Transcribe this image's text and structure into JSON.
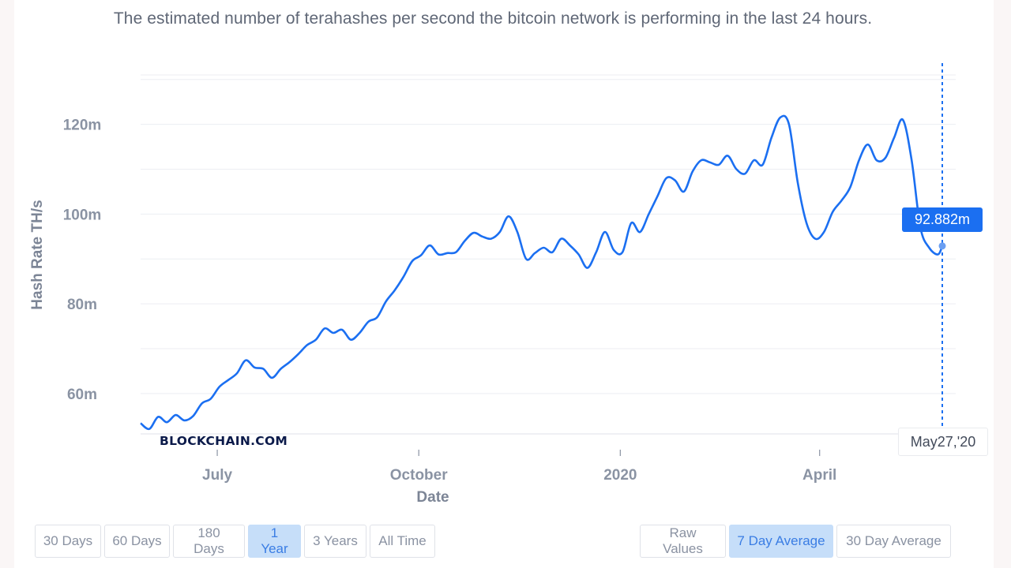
{
  "subtitle": "The estimated number of terahashes per second the bitcoin network is performing in the last 24 hours.",
  "watermark": "BLOCKCHAIN.COM",
  "tooltip": {
    "value": "92.882m",
    "date": "May27,'20"
  },
  "range_buttons": [
    {
      "label": "30 Days",
      "active": false
    },
    {
      "label": "60 Days",
      "active": false
    },
    {
      "label": "180 Days",
      "active": false
    },
    {
      "label": "1 Year",
      "active": true
    },
    {
      "label": "3 Years",
      "active": false
    },
    {
      "label": "All Time",
      "active": false
    }
  ],
  "avg_buttons": [
    {
      "label": "Raw Values",
      "active": false
    },
    {
      "label": "7 Day Average",
      "active": true
    },
    {
      "label": "30 Day Average",
      "active": false
    }
  ],
  "colors": {
    "line": "#1b6ff1",
    "accent": "#1b6ff1",
    "active_button": "#c6def9"
  },
  "chart_data": {
    "type": "line",
    "title": "",
    "xlabel": "Date",
    "ylabel": "Hash Rate TH/s",
    "x_range": [
      "2019-05-27",
      "2020-05-27"
    ],
    "ylim": [
      51,
      131
    ],
    "y_ticks": [
      60,
      80,
      100,
      120
    ],
    "y_tick_labels": [
      "60m",
      "80m",
      "100m",
      "120m"
    ],
    "x_ticks": [
      {
        "date": "2019-07-01",
        "label": "July"
      },
      {
        "date": "2019-10-01",
        "label": "October"
      },
      {
        "date": "2020-01-01",
        "label": "2020"
      },
      {
        "date": "2020-04-01",
        "label": "April"
      }
    ],
    "grid": true,
    "series": [
      {
        "values": [
          [
            "2019-05-27",
            53.4
          ],
          [
            "2019-05-31",
            52.1
          ],
          [
            "2019-06-04",
            54.8
          ],
          [
            "2019-06-08",
            53.6
          ],
          [
            "2019-06-12",
            55.2
          ],
          [
            "2019-06-16",
            54.0
          ],
          [
            "2019-06-20",
            55.0
          ],
          [
            "2019-06-24",
            57.8
          ],
          [
            "2019-06-28",
            58.8
          ],
          [
            "2019-07-02",
            61.5
          ],
          [
            "2019-07-06",
            63.0
          ],
          [
            "2019-07-10",
            64.5
          ],
          [
            "2019-07-14",
            67.4
          ],
          [
            "2019-07-18",
            65.8
          ],
          [
            "2019-07-22",
            65.5
          ],
          [
            "2019-07-26",
            63.5
          ],
          [
            "2019-07-30",
            65.5
          ],
          [
            "2019-08-03",
            67.0
          ],
          [
            "2019-08-07",
            68.8
          ],
          [
            "2019-08-11",
            70.8
          ],
          [
            "2019-08-15",
            72.0
          ],
          [
            "2019-08-19",
            74.5
          ],
          [
            "2019-08-23",
            73.5
          ],
          [
            "2019-08-27",
            74.2
          ],
          [
            "2019-08-31",
            72.0
          ],
          [
            "2019-09-04",
            73.5
          ],
          [
            "2019-09-08",
            76.0
          ],
          [
            "2019-09-12",
            77.0
          ],
          [
            "2019-09-16",
            80.5
          ],
          [
            "2019-09-20",
            83.0
          ],
          [
            "2019-09-24",
            86.0
          ],
          [
            "2019-09-28",
            89.5
          ],
          [
            "2019-10-02",
            90.8
          ],
          [
            "2019-10-06",
            93.0
          ],
          [
            "2019-10-10",
            91.0
          ],
          [
            "2019-10-14",
            91.3
          ],
          [
            "2019-10-18",
            91.5
          ],
          [
            "2019-10-22",
            94.0
          ],
          [
            "2019-10-26",
            95.8
          ],
          [
            "2019-10-30",
            95.0
          ],
          [
            "2019-11-03",
            94.5
          ],
          [
            "2019-11-07",
            96.0
          ],
          [
            "2019-11-11",
            99.5
          ],
          [
            "2019-11-15",
            96.0
          ],
          [
            "2019-11-19",
            90.0
          ],
          [
            "2019-11-23",
            91.3
          ],
          [
            "2019-11-27",
            92.5
          ],
          [
            "2019-12-01",
            91.5
          ],
          [
            "2019-12-05",
            94.5
          ],
          [
            "2019-12-09",
            93.0
          ],
          [
            "2019-12-13",
            91.0
          ],
          [
            "2019-12-17",
            88.0
          ],
          [
            "2019-12-21",
            91.5
          ],
          [
            "2019-12-25",
            96.0
          ],
          [
            "2019-12-29",
            92.0
          ],
          [
            "2020-01-02",
            91.5
          ],
          [
            "2020-01-06",
            98.0
          ],
          [
            "2020-01-10",
            96.0
          ],
          [
            "2020-01-14",
            100.0
          ],
          [
            "2020-01-18",
            104.0
          ],
          [
            "2020-01-22",
            108.0
          ],
          [
            "2020-01-26",
            107.5
          ],
          [
            "2020-01-30",
            105.0
          ],
          [
            "2020-02-03",
            109.5
          ],
          [
            "2020-02-07",
            112.0
          ],
          [
            "2020-02-11",
            111.5
          ],
          [
            "2020-02-15",
            111.0
          ],
          [
            "2020-02-19",
            113.0
          ],
          [
            "2020-02-23",
            110.0
          ],
          [
            "2020-02-27",
            109.0
          ],
          [
            "2020-03-02",
            112.0
          ],
          [
            "2020-03-06",
            111.0
          ],
          [
            "2020-03-10",
            117.0
          ],
          [
            "2020-03-14",
            121.5
          ],
          [
            "2020-03-18",
            120.0
          ],
          [
            "2020-03-22",
            107.0
          ],
          [
            "2020-03-26",
            98.0
          ],
          [
            "2020-03-30",
            94.5
          ],
          [
            "2020-04-03",
            96.0
          ],
          [
            "2020-04-07",
            100.5
          ],
          [
            "2020-04-11",
            103.0
          ],
          [
            "2020-04-15",
            106.0
          ],
          [
            "2020-04-19",
            112.0
          ],
          [
            "2020-04-23",
            115.5
          ],
          [
            "2020-04-27",
            112.0
          ],
          [
            "2020-05-01",
            112.5
          ],
          [
            "2020-05-05",
            117.0
          ],
          [
            "2020-05-09",
            121.0
          ],
          [
            "2020-05-13",
            112.0
          ],
          [
            "2020-05-17",
            97.0
          ],
          [
            "2020-05-21",
            92.5
          ],
          [
            "2020-05-25",
            91.0
          ],
          [
            "2020-05-27",
            92.882
          ]
        ]
      }
    ]
  }
}
